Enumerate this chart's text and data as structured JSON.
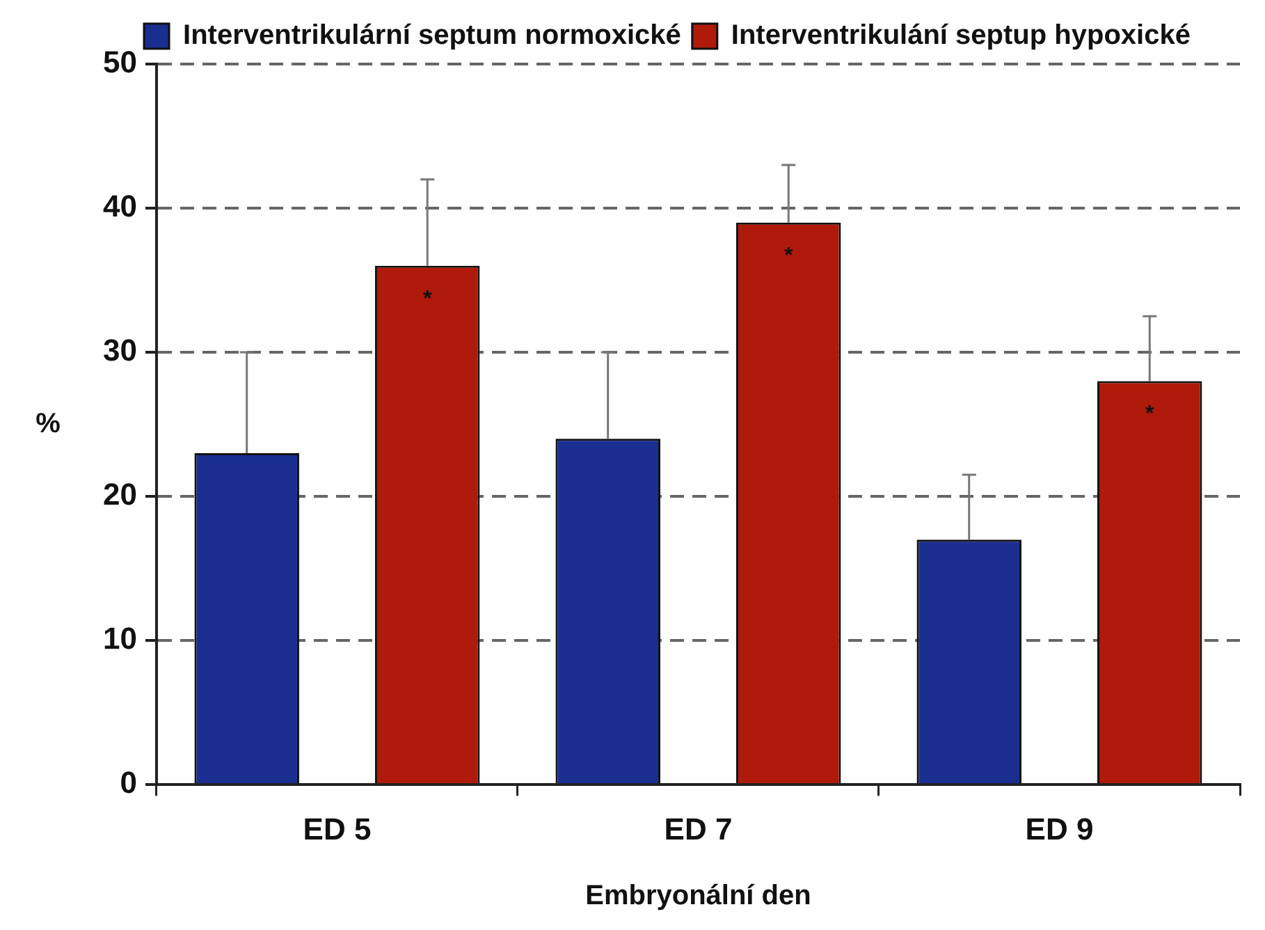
{
  "chart_data": {
    "type": "bar",
    "xlabel": "Embryonální den",
    "ylabel": "%",
    "categories": [
      "ED 5",
      "ED 7",
      "ED 9"
    ],
    "series": [
      {
        "name": "Interventrikulární septum normoxické",
        "color": "#1a2e8f",
        "values": [
          23,
          24,
          17
        ],
        "errors": [
          [
            23,
            30
          ],
          [
            24,
            30
          ],
          [
            17,
            21.5
          ]
        ]
      },
      {
        "name": "Interventrikulání septup hypoxické",
        "color": "#b01a0a",
        "values": [
          36,
          39,
          28
        ],
        "errors": [
          [
            36,
            42
          ],
          [
            39,
            43
          ],
          [
            28,
            32.5
          ]
        ]
      }
    ],
    "ylim": [
      0,
      50
    ],
    "yticks": [
      0,
      10,
      20,
      30,
      40,
      50
    ],
    "grid": "y",
    "legend": "top",
    "annotations": [
      "*",
      "*",
      "*"
    ]
  }
}
